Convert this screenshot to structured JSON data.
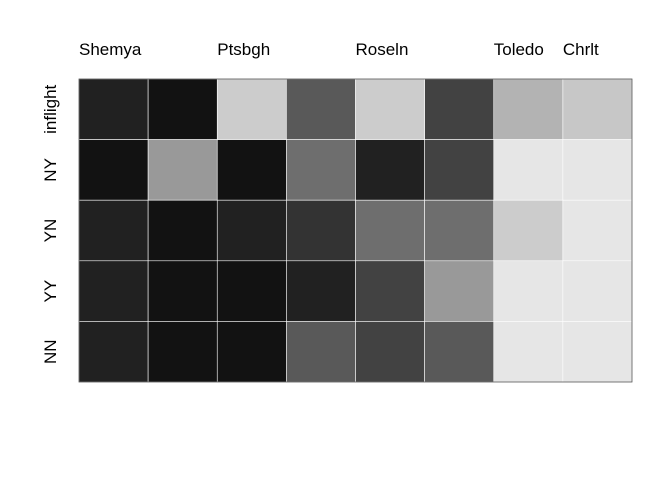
{
  "chart_data": {
    "type": "heatmap",
    "colorscale": "grayscale (dark = low, light = high)",
    "grid": true,
    "x_labels": [
      "Shemya",
      "",
      "Ptsbgh",
      "",
      "Roseln",
      "",
      "Toledo",
      "Chrlt"
    ],
    "y_labels": [
      "inflight",
      "NY",
      "YN",
      "YY",
      "NN"
    ],
    "values": [
      [
        0.13,
        0.07,
        0.8,
        0.35,
        0.8,
        0.26,
        0.7,
        0.78
      ],
      [
        0.07,
        0.6,
        0.07,
        0.43,
        0.13,
        0.26,
        0.9,
        0.9
      ],
      [
        0.13,
        0.07,
        0.13,
        0.2,
        0.43,
        0.43,
        0.8,
        0.9
      ],
      [
        0.13,
        0.07,
        0.07,
        0.13,
        0.26,
        0.6,
        0.9,
        0.9
      ],
      [
        0.13,
        0.07,
        0.07,
        0.35,
        0.26,
        0.35,
        0.9,
        0.9
      ]
    ]
  }
}
